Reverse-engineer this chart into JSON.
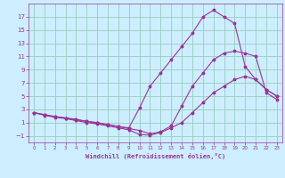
{
  "xlabel": "Windchill (Refroidissement éolien,°C)",
  "bg_color": "#cceeff",
  "grid_color": "#99ccbb",
  "line_color": "#993399",
  "xlim": [
    -0.5,
    23.5
  ],
  "ylim": [
    -2,
    19
  ],
  "xticks": [
    0,
    1,
    2,
    3,
    4,
    5,
    6,
    7,
    8,
    9,
    10,
    11,
    12,
    13,
    14,
    15,
    16,
    17,
    18,
    19,
    20,
    21,
    22,
    23
  ],
  "yticks": [
    -1,
    1,
    3,
    5,
    7,
    9,
    11,
    13,
    15,
    17
  ],
  "line1_x": [
    0,
    1,
    2,
    3,
    4,
    5,
    6,
    7,
    8,
    9,
    10,
    11,
    12,
    13,
    14,
    15,
    16,
    17,
    18,
    19,
    20,
    21,
    22,
    23
  ],
  "line1_y": [
    2.5,
    2.2,
    1.9,
    1.7,
    1.5,
    1.2,
    1.0,
    0.7,
    0.4,
    0.2,
    3.2,
    6.5,
    8.5,
    10.5,
    12.5,
    14.5,
    17.0,
    18.0,
    17.0,
    16.0,
    9.5,
    7.5,
    6.0,
    5.0
  ],
  "line2_x": [
    0,
    1,
    2,
    3,
    4,
    5,
    6,
    7,
    8,
    9,
    10,
    11,
    12,
    13,
    14,
    15,
    16,
    17,
    18,
    19,
    20,
    21,
    22,
    23
  ],
  "line2_y": [
    2.5,
    2.2,
    1.9,
    1.7,
    1.4,
    1.2,
    0.9,
    0.7,
    0.4,
    0.1,
    -0.2,
    -0.7,
    -0.4,
    0.5,
    3.5,
    6.5,
    8.5,
    10.5,
    11.5,
    11.8,
    11.5,
    11.0,
    5.5,
    4.5
  ],
  "line3_x": [
    0,
    1,
    2,
    3,
    4,
    5,
    6,
    7,
    8,
    9,
    10,
    11,
    12,
    13,
    14,
    15,
    16,
    17,
    18,
    19,
    20,
    21,
    22,
    23
  ],
  "line3_y": [
    2.5,
    2.1,
    1.8,
    1.6,
    1.3,
    1.0,
    0.8,
    0.5,
    0.2,
    -0.1,
    -0.8,
    -0.9,
    -0.5,
    0.2,
    1.0,
    2.5,
    4.0,
    5.5,
    6.5,
    7.5,
    8.0,
    7.5,
    6.0,
    5.0
  ]
}
